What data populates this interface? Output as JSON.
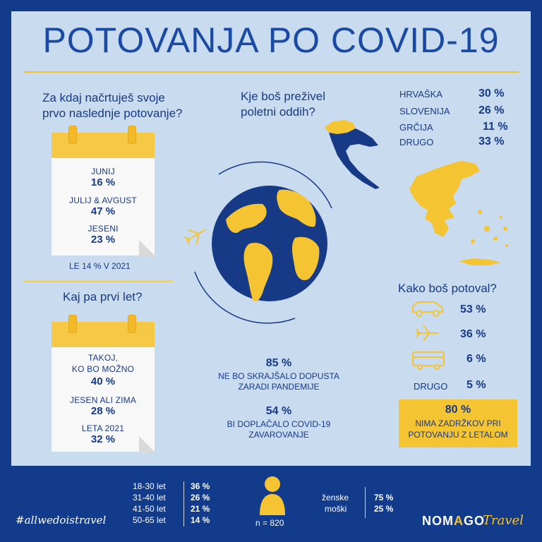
{
  "title": "POTOVANJA PO COVID-19",
  "colors": {
    "navy": "#123b8c",
    "panel": "#c9dbee",
    "text": "#173a86",
    "yellow": "#f5c433"
  },
  "q1": {
    "line1": "Za kdaj načrtuješ svoje",
    "line2": "prvo naslednje potovanje?",
    "items": [
      {
        "label": "JUNIJ",
        "pct": "16 %"
      },
      {
        "label": "JULIJ & AVGUST",
        "pct": "47 %"
      },
      {
        "label": "JESENI",
        "pct": "23 %"
      }
    ],
    "note": "LE 14 % V 2021"
  },
  "q2": {
    "line1": "Kaj pa prvi let?",
    "items": [
      {
        "label1": "TAKOJ,",
        "label2": "KO BO MOŽNO",
        "pct": "40 %"
      },
      {
        "label": "JESEN ALI ZIMA",
        "pct": "28 %"
      },
      {
        "label": "LETA 2021",
        "pct": "32 %"
      }
    ]
  },
  "q3": {
    "line1": "Kje boš preživel",
    "line2": "poletni oddih?",
    "countries": [
      {
        "name": "HRVAŠKA",
        "pct": "30 %"
      },
      {
        "name": "SLOVENIJA",
        "pct": "26 %"
      },
      {
        "name": "GRČIJA",
        "pct": "11 %"
      },
      {
        "name": "DRUGO",
        "pct": "33 %"
      }
    ]
  },
  "stats": [
    {
      "pct": "85 %",
      "line1": "NE BO SKRAJŠALO DOPUSTA",
      "line2": "ZARADI PANDEMIJE"
    },
    {
      "pct": "54 %",
      "line1": "BI DOPLAČALO COVID-19",
      "line2": "ZAVAROVANJE"
    }
  ],
  "transport": {
    "question": "Kako boš potoval?",
    "items": [
      {
        "icon": "car-icon",
        "pct": "53 %"
      },
      {
        "icon": "plane-icon",
        "pct": "36 %"
      },
      {
        "icon": "bus-icon",
        "pct": "6 %"
      },
      {
        "label": "DRUGO",
        "pct": "5 %"
      }
    ],
    "box": {
      "pct": "80 %",
      "line1": "NIMA ZADRŽKOV PRI",
      "line2": "POTOVANJU Z LETALOM"
    }
  },
  "footer": {
    "ages": [
      {
        "range": "18-30 let",
        "pct": "36 %"
      },
      {
        "range": "31-40 let",
        "pct": "26 %"
      },
      {
        "range": "41-50 let",
        "pct": "21 %"
      },
      {
        "range": "50-65 let",
        "pct": "14 %"
      }
    ],
    "n": "n = 820",
    "genders": [
      {
        "label": "ženske",
        "pct": "75 %"
      },
      {
        "label": "moški",
        "pct": "25 %"
      }
    ],
    "hashtag": "#allwedoistravel",
    "brand_a": "NOM",
    "brand_o": "A",
    "brand_b": "GO",
    "brand_sub": "Travel"
  }
}
